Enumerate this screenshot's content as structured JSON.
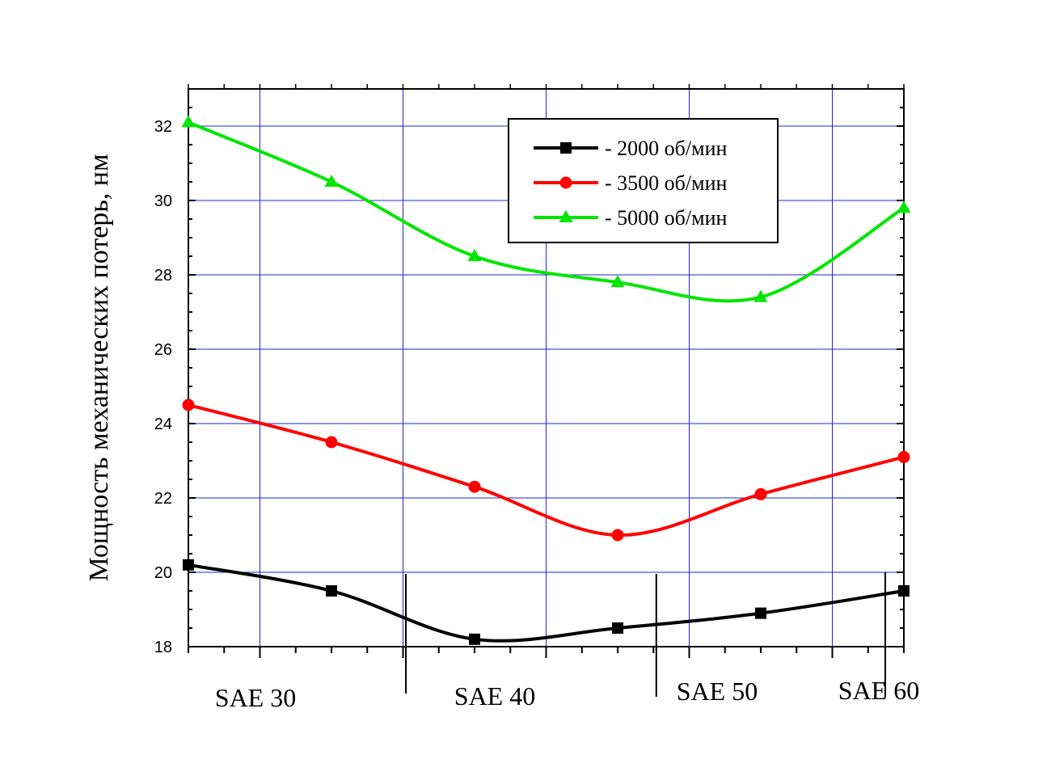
{
  "chart_data": {
    "type": "line",
    "title": "",
    "ylabel": "Мощность механических потерь, нм",
    "xlabel": "",
    "ylim": [
      18,
      33
    ],
    "yticks": [
      18,
      20,
      22,
      24,
      26,
      28,
      30,
      32
    ],
    "grid": true,
    "legend_position": "top-right",
    "x": [
      0,
      1,
      2,
      3,
      4,
      5
    ],
    "series": [
      {
        "name": "- 2000 об/мин",
        "color": "#000000",
        "marker": "square",
        "values": [
          20.2,
          19.5,
          18.2,
          18.5,
          18.9,
          19.5
        ]
      },
      {
        "name": "- 3500 об/мин",
        "color": "#ff0000",
        "marker": "circle",
        "values": [
          24.5,
          23.5,
          22.3,
          21.0,
          22.1,
          23.1
        ]
      },
      {
        "name": "- 5000 об/мин",
        "color": "#00e600",
        "marker": "triangle",
        "values": [
          32.1,
          30.5,
          28.5,
          27.8,
          27.4,
          29.8
        ]
      }
    ],
    "grade_labels": [
      "SAE 30",
      "SAE 40",
      "SAE 50",
      "SAE 60"
    ]
  }
}
